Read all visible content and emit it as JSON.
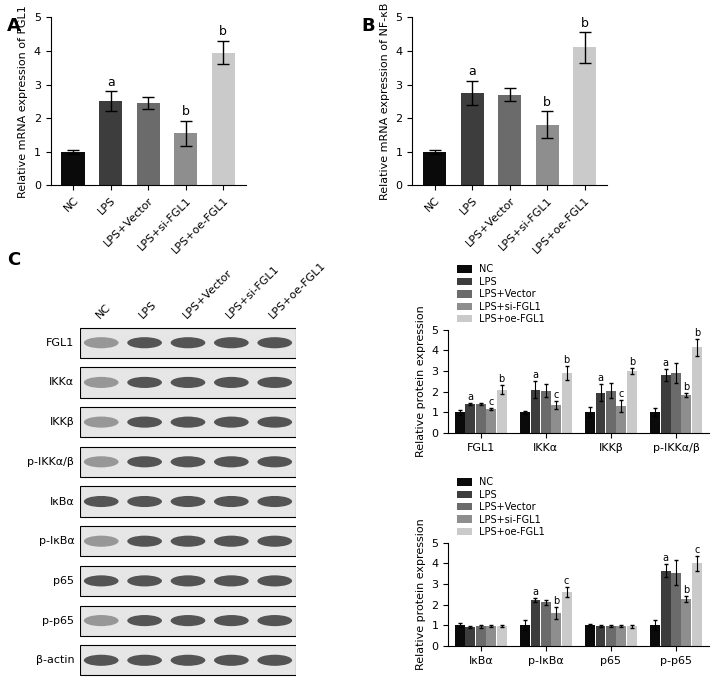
{
  "chart_data": [
    {
      "type": "bar",
      "panel_label": "A",
      "y_label": "Relative mRNA expression of FGL1",
      "categories": [
        "NC",
        "LPS",
        "LPS+Vector",
        "LPS+si-FGL1",
        "LPS+oe-FGL1"
      ],
      "values": [
        1.0,
        2.5,
        2.45,
        1.55,
        3.95
      ],
      "errors": [
        0.05,
        0.3,
        0.18,
        0.38,
        0.35
      ],
      "significance": [
        null,
        "a",
        null,
        "b",
        "b"
      ],
      "colors": [
        "#0a0a0a",
        "#3d3d3d",
        "#6b6b6b",
        "#8e8e8e",
        "#cacaca"
      ],
      "ylim": [
        0,
        5
      ],
      "yticks": [
        0,
        1,
        2,
        3,
        4,
        5
      ]
    },
    {
      "type": "bar",
      "panel_label": "B",
      "y_label": "Relative mRNA expression of NF-κB",
      "categories": [
        "NC",
        "LPS",
        "LPS+Vector",
        "LPS+si-FGL1",
        "LPS+oe-FGL1"
      ],
      "values": [
        1.0,
        2.75,
        2.7,
        1.8,
        4.1
      ],
      "errors": [
        0.05,
        0.35,
        0.2,
        0.4,
        0.45
      ],
      "significance": [
        null,
        "a",
        null,
        "b",
        "b"
      ],
      "colors": [
        "#0a0a0a",
        "#3d3d3d",
        "#6b6b6b",
        "#8e8e8e",
        "#cacaca"
      ],
      "ylim": [
        0,
        5
      ],
      "yticks": [
        0,
        1,
        2,
        3,
        4,
        5
      ]
    },
    {
      "type": "bar",
      "y_label": "Relative protein expression",
      "categories": [
        "FGL1",
        "IKKα",
        "IKKβ",
        "p-IKKα/β"
      ],
      "series": [
        {
          "name": "NC",
          "color": "#0a0a0a",
          "values": [
            1.0,
            1.0,
            1.0,
            1.0
          ],
          "errors": [
            0.12,
            0.08,
            0.25,
            0.18
          ],
          "significance": [
            null,
            null,
            null,
            null
          ]
        },
        {
          "name": "LPS",
          "color": "#3d3d3d",
          "values": [
            1.4,
            2.1,
            1.95,
            2.8
          ],
          "errors": [
            0.05,
            0.4,
            0.4,
            0.3
          ],
          "significance": [
            "a",
            "a",
            "a",
            "a"
          ]
        },
        {
          "name": "LPS+Vector",
          "color": "#6b6b6b",
          "values": [
            1.42,
            2.05,
            2.05,
            2.9
          ],
          "errors": [
            0.05,
            0.3,
            0.35,
            0.5
          ],
          "significance": [
            null,
            null,
            null,
            null
          ]
        },
        {
          "name": "LPS+si-FGL1",
          "color": "#8e8e8e",
          "values": [
            1.15,
            1.35,
            1.3,
            1.85
          ],
          "errors": [
            0.05,
            0.2,
            0.3,
            0.1
          ],
          "significance": [
            "c",
            "c",
            "c",
            "b"
          ]
        },
        {
          "name": "LPS+oe-FGL1",
          "color": "#cacaca",
          "values": [
            2.1,
            2.9,
            3.0,
            4.15
          ],
          "errors": [
            0.2,
            0.35,
            0.15,
            0.4
          ],
          "significance": [
            "b",
            "b",
            "b",
            "b"
          ]
        }
      ],
      "legend": "upper left",
      "ylim": [
        0,
        5
      ],
      "yticks": [
        0,
        1,
        2,
        3,
        4,
        5
      ]
    },
    {
      "type": "bar",
      "y_label": "Relative protein expression",
      "categories": [
        "IκBα",
        "p-IκBα",
        "p65",
        "p-p65"
      ],
      "series": [
        {
          "name": "NC",
          "color": "#0a0a0a",
          "values": [
            1.0,
            1.0,
            1.0,
            1.0
          ],
          "errors": [
            0.1,
            0.25,
            0.08,
            0.25
          ],
          "significance": [
            null,
            null,
            null,
            null
          ]
        },
        {
          "name": "LPS",
          "color": "#3d3d3d",
          "values": [
            0.9,
            2.2,
            0.95,
            3.65
          ],
          "errors": [
            0.05,
            0.1,
            0.05,
            0.3
          ],
          "significance": [
            null,
            "a",
            null,
            "a"
          ]
        },
        {
          "name": "LPS+Vector",
          "color": "#6b6b6b",
          "values": [
            0.95,
            2.1,
            0.95,
            3.55
          ],
          "errors": [
            0.08,
            0.1,
            0.05,
            0.6
          ],
          "significance": [
            null,
            null,
            null,
            null
          ]
        },
        {
          "name": "LPS+si-FGL1",
          "color": "#8e8e8e",
          "values": [
            0.95,
            1.6,
            0.95,
            2.25
          ],
          "errors": [
            0.05,
            0.3,
            0.05,
            0.15
          ],
          "significance": [
            null,
            "b",
            null,
            "b"
          ]
        },
        {
          "name": "LPS+oe-FGL1",
          "color": "#cacaca",
          "values": [
            0.95,
            2.6,
            0.95,
            4.0
          ],
          "errors": [
            0.05,
            0.25,
            0.08,
            0.35
          ],
          "significance": [
            null,
            "c",
            null,
            "c"
          ]
        }
      ],
      "legend": "upper left",
      "ylim": [
        0,
        5
      ],
      "yticks": [
        0,
        1,
        2,
        3,
        4,
        5
      ]
    }
  ],
  "blot": {
    "panel_label": "C",
    "lanes": [
      "NC",
      "LPS",
      "LPS+Vector",
      "LPS+si-FGL1",
      "LPS+oe-FGL1"
    ],
    "rows": [
      "FGL1",
      "IKKα",
      "IKKβ",
      "p-IKKα/β",
      "IκBα",
      "p-IκBα",
      "p65",
      "p-p65",
      "β-actin"
    ]
  }
}
